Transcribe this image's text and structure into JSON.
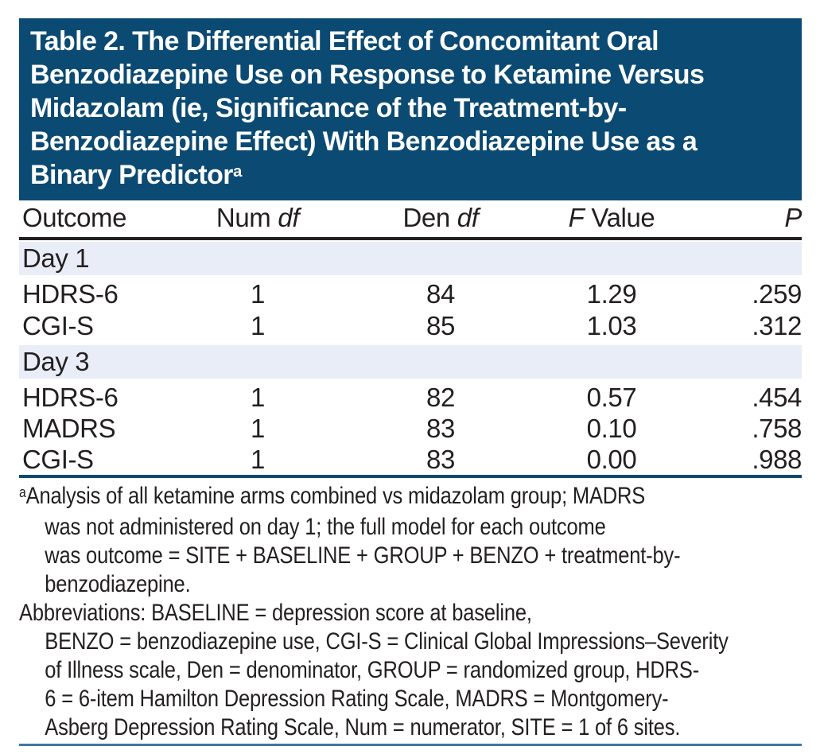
{
  "title": {
    "lines": [
      "Table 2. The Differential Effect of Concomitant Oral",
      "Benzodiazepine Use on Response to Ketamine Versus",
      "Midazolam (ie, Significance of the Treatment-by-",
      "Benzodiazepine Effect) With Benzodiazepine Use as a",
      "Binary Predictor"
    ],
    "superscript": "a"
  },
  "table": {
    "headers": {
      "outcome": "Outcome",
      "num_label": "Num",
      "num_italic": "df",
      "den_label": "Den",
      "den_italic": "df",
      "f_italic": "F",
      "f_label": "Value",
      "p_italic": "P"
    },
    "sections": [
      {
        "label": "Day 1",
        "rows": [
          {
            "outcome": "HDRS-6",
            "num_df": "1",
            "den_df": "84",
            "f_value": "1.29",
            "p": ".259"
          },
          {
            "outcome": "CGI-S",
            "num_df": "1",
            "den_df": "85",
            "f_value": "1.03",
            "p": ".312"
          }
        ]
      },
      {
        "label": "Day 3",
        "rows": [
          {
            "outcome": "HDRS-6",
            "num_df": "1",
            "den_df": "82",
            "f_value": "0.57",
            "p": ".454"
          },
          {
            "outcome": "MADRS",
            "num_df": "1",
            "den_df": "83",
            "f_value": "0.10",
            "p": ".758"
          },
          {
            "outcome": "CGI-S",
            "num_df": "1",
            "den_df": "83",
            "f_value": "0.00",
            "p": ".988"
          }
        ]
      }
    ]
  },
  "footnotes": {
    "superscript": "a",
    "note_line1": "Analysis of all ketamine arms combined vs midazolam group; MADRS",
    "note_line2": "was not administered on day 1; the full model for each outcome",
    "note_line3": "was outcome = SITE + BASELINE + GROUP + BENZO + treatment-by-",
    "note_line4": "benzodiazepine.",
    "abbrev_line1": "Abbreviations: BASELINE = depression score at baseline,",
    "abbrev_line2": "BENZO = benzodiazepine use, CGI-S = Clinical Global Impressions–Severity",
    "abbrev_line3": "of Illness scale, Den = denominator, GROUP = randomized group, HDRS-",
    "abbrev_line4": "6 = 6-item Hamilton Depression Rating Scale, MADRS = Montgomery-",
    "abbrev_line5": "Asberg Depression Rating Scale, Num = numerator, SITE = 1 of 6 sites."
  },
  "colors": {
    "banner_bg": "#0b4a72",
    "band_bg": "#e9edf8",
    "text": "#231f20",
    "header_rule": "#231f20",
    "body_rule": "#0b4a72",
    "bottom_rule": "#4076a3"
  }
}
